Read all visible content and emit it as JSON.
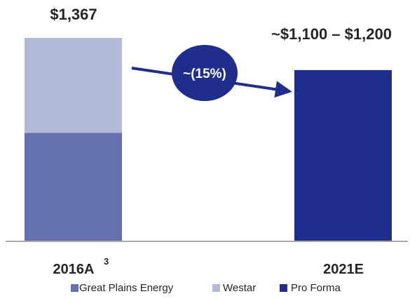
{
  "chart_data": {
    "type": "bar",
    "stacked": true,
    "categories": [
      "2016A",
      "2021E"
    ],
    "category_superscripts": [
      "3",
      ""
    ],
    "series": [
      {
        "name": "Great Plains Energy",
        "values": [
          727,
          0
        ],
        "color": "#6470b0"
      },
      {
        "name": "Westar",
        "values": [
          640,
          0
        ],
        "color": "#b2b9d9"
      },
      {
        "name": "Pro Forma",
        "values": [
          0,
          1150
        ],
        "color": "#1f2d8c"
      }
    ],
    "totals_labels": [
      "$1,367",
      "~$1,100 – $1,200"
    ],
    "annotation": {
      "text": "~(15%)",
      "color": "#1f2d8c"
    },
    "ylim": [
      0,
      1367
    ],
    "grid": false,
    "legend_position": "bottom"
  }
}
